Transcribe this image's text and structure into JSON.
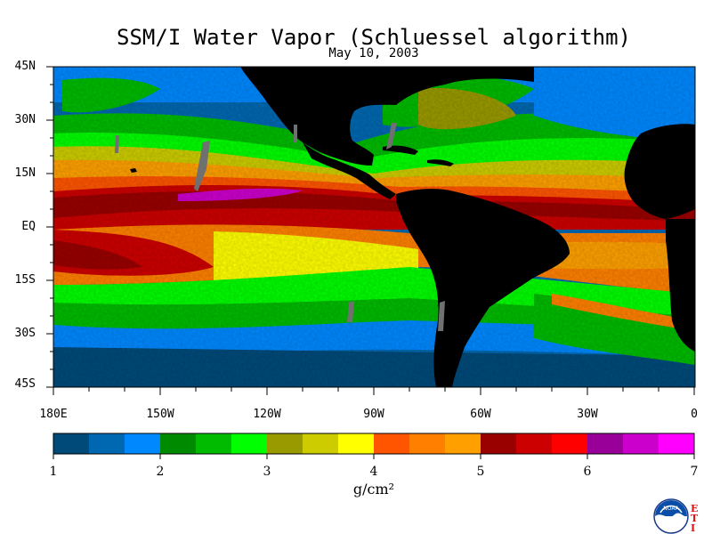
{
  "title": "SSM/I Water Vapor (Schluessel algorithm)",
  "subtitle": "May 10, 2003",
  "map": {
    "lat_labels": [
      "45N",
      "30N",
      "15N",
      "EQ",
      "15S",
      "30S",
      "45S"
    ],
    "lon_labels": [
      "180E",
      "150W",
      "120W",
      "90W",
      "60W",
      "30W",
      "0"
    ],
    "lat_range": [
      -45,
      45
    ],
    "lon_range": [
      -180,
      0
    ],
    "land_color": "#000000",
    "missing_swath_color": "#707070"
  },
  "colorbar": {
    "tick_labels": [
      "1",
      "2",
      "3",
      "4",
      "5",
      "6",
      "7"
    ],
    "range": [
      1,
      7
    ],
    "colors": [
      "#004a7a",
      "#0068b0",
      "#0088ff",
      "#008a00",
      "#00bb00",
      "#00ff00",
      "#999900",
      "#cccc00",
      "#ffff00",
      "#ff5500",
      "#ff8000",
      "#ffa000",
      "#990000",
      "#cc0000",
      "#ff0000",
      "#990099",
      "#cc00cc",
      "#ff00ff"
    ],
    "units": "g/cm²"
  },
  "logo": {
    "label": "NOAA",
    "corner_text": "ETI"
  }
}
